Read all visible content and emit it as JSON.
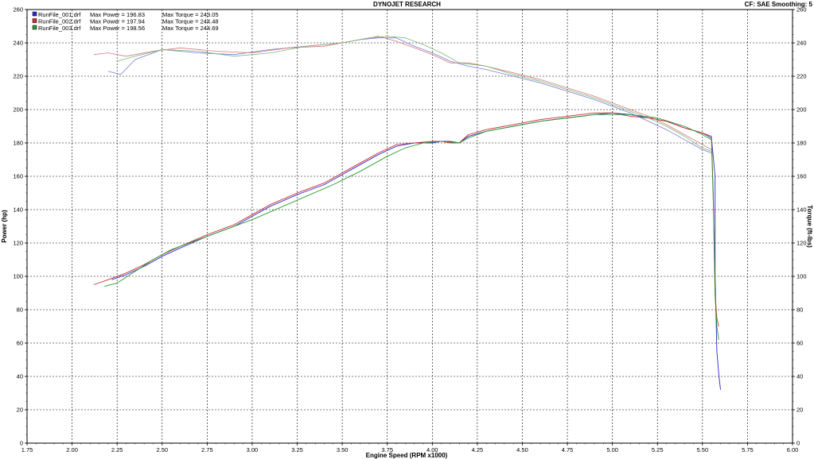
{
  "header": {
    "title": "DYNOJET RESEARCH",
    "cf_info": "CF: SAE  Smoothing: 5"
  },
  "chart_data": {
    "type": "line",
    "title": "DYNOJET RESEARCH",
    "xlabel": "Engine Speed (RPM x1000)",
    "ylabel_left": "Power (hp)",
    "ylabel_right": "Torque (ft-lbs)",
    "xlim": [
      1.75,
      6.0
    ],
    "ylim_left": [
      0,
      260
    ],
    "ylim_right": [
      0,
      260
    ],
    "x_ticks": [
      "1.75",
      "2.00",
      "2.25",
      "2.50",
      "2.75",
      "3.00",
      "3.25",
      "3.50",
      "3.75",
      "4.00",
      "4.25",
      "4.50",
      "4.75",
      "5.00",
      "5.25",
      "5.50",
      "5.75",
      "6.00"
    ],
    "y_ticks_left": [
      "0",
      "20",
      "40",
      "60",
      "80",
      "100",
      "120",
      "140",
      "160",
      "180",
      "200",
      "220",
      "240",
      "260"
    ],
    "y_ticks_right": [
      "0",
      "20",
      "40",
      "60",
      "80",
      "100",
      "120",
      "140",
      "160",
      "180",
      "200",
      "220",
      "240",
      "260"
    ],
    "grid": true,
    "legend_position": "top-left",
    "legend": [
      {
        "file": "RunFile_001.drf",
        "max_power": "Max Power = 196.83",
        "max_torque": "Max Torque = 243.05",
        "color": "#2b2bd0"
      },
      {
        "file": "RunFile_002.drf",
        "max_power": "Max Power = 197.94",
        "max_torque": "Max Torque = 244.48",
        "color": "#d02b2b"
      },
      {
        "file": "RunFile_003.drf",
        "max_power": "Max Power = 198.56",
        "max_torque": "Max Torque = 244.69",
        "color": "#2b9b2b"
      }
    ],
    "series": [
      {
        "name": "RunFile_001.drf",
        "kind": "power",
        "color": "#2b2bd0",
        "x": [
          2.22,
          2.3,
          2.4,
          2.5,
          2.6,
          2.75,
          2.9,
          3.0,
          3.1,
          3.25,
          3.4,
          3.5,
          3.6,
          3.7,
          3.8,
          3.9,
          4.0,
          4.05,
          4.1,
          4.15,
          4.2,
          4.3,
          4.4,
          4.5,
          4.6,
          4.75,
          4.9,
          5.0,
          5.1,
          5.2,
          5.3,
          5.4,
          5.5,
          5.55,
          5.57,
          5.57,
          5.58,
          5.59,
          5.6
        ],
        "y": [
          98,
          101,
          106,
          112,
          117,
          124,
          130,
          136,
          142,
          149,
          155,
          161,
          167,
          173,
          178,
          180,
          180,
          181,
          181,
          180,
          184,
          187,
          189,
          191,
          193,
          195,
          197,
          198,
          197,
          195,
          193,
          189,
          186,
          183,
          160,
          100,
          55,
          42,
          32
        ]
      },
      {
        "name": "RunFile_002.drf",
        "kind": "power",
        "color": "#d02b2b",
        "x": [
          2.12,
          2.2,
          2.3,
          2.4,
          2.5,
          2.6,
          2.75,
          2.9,
          3.0,
          3.1,
          3.25,
          3.4,
          3.5,
          3.6,
          3.7,
          3.8,
          3.9,
          4.0,
          4.05,
          4.1,
          4.15,
          4.2,
          4.3,
          4.4,
          4.5,
          4.6,
          4.75,
          4.9,
          5.0,
          5.1,
          5.2,
          5.3,
          5.4,
          5.5,
          5.55,
          5.56,
          5.57,
          5.58,
          5.59
        ],
        "y": [
          95,
          98,
          102,
          107,
          113,
          118,
          125,
          131,
          137,
          143,
          150,
          156,
          162,
          168,
          174,
          179,
          180,
          181,
          181,
          180,
          180,
          185,
          188,
          190,
          192,
          194,
          196,
          198,
          198,
          196,
          195,
          193,
          189,
          186,
          184,
          150,
          90,
          75,
          70
        ]
      },
      {
        "name": "RunFile_003.drf",
        "kind": "power",
        "color": "#2b9b2b",
        "x": [
          2.18,
          2.25,
          2.35,
          2.45,
          2.55,
          2.7,
          2.85,
          3.0,
          3.15,
          3.3,
          3.45,
          3.6,
          3.75,
          3.85,
          3.95,
          4.05,
          4.15,
          4.2,
          4.3,
          4.45,
          4.6,
          4.75,
          4.9,
          5.0,
          5.1,
          5.25,
          5.4,
          5.5,
          5.55,
          5.56,
          5.57,
          5.58,
          5.59
        ],
        "y": [
          94,
          96,
          103,
          110,
          116,
          122,
          128,
          134,
          141,
          148,
          155,
          163,
          172,
          177,
          180,
          181,
          180,
          183,
          187,
          190,
          193,
          195,
          197,
          197,
          197,
          195,
          190,
          185,
          182,
          145,
          88,
          70,
          62
        ]
      },
      {
        "name": "RunFile_001.drf",
        "kind": "torque",
        "color": "#7878d8",
        "x": [
          2.2,
          2.27,
          2.35,
          2.5,
          2.7,
          2.9,
          3.1,
          3.3,
          3.5,
          3.6,
          3.7,
          3.8,
          3.9,
          4.0,
          4.1,
          4.2,
          4.3,
          4.45,
          4.6,
          4.75,
          4.9,
          5.0,
          5.1,
          5.2,
          5.3,
          5.4,
          5.5,
          5.55
        ],
        "y": [
          223,
          221,
          230,
          236,
          234,
          233,
          236,
          238,
          240,
          242,
          243,
          243,
          238,
          234,
          229,
          226,
          224,
          220,
          216,
          211,
          206,
          202,
          198,
          193,
          188,
          182,
          176,
          174
        ]
      },
      {
        "name": "RunFile_002.drf",
        "kind": "torque",
        "color": "#d87878",
        "x": [
          2.12,
          2.2,
          2.3,
          2.45,
          2.6,
          2.8,
          3.0,
          3.2,
          3.4,
          3.5,
          3.6,
          3.7,
          3.8,
          3.9,
          4.0,
          4.1,
          4.2,
          4.3,
          4.45,
          4.6,
          4.75,
          4.9,
          5.0,
          5.1,
          5.2,
          5.3,
          5.4,
          5.5,
          5.55
        ],
        "y": [
          233,
          234,
          232,
          235,
          237,
          235,
          234,
          237,
          238,
          240,
          242,
          244,
          241,
          237,
          233,
          228,
          228,
          226,
          222,
          218,
          213,
          208,
          204,
          200,
          196,
          191,
          185,
          179,
          176
        ]
      },
      {
        "name": "RunFile_003.drf",
        "kind": "torque",
        "color": "#78b878",
        "x": [
          2.25,
          2.35,
          2.5,
          2.7,
          2.9,
          3.1,
          3.3,
          3.5,
          3.65,
          3.75,
          3.85,
          3.95,
          4.05,
          4.15,
          4.3,
          4.45,
          4.6,
          4.75,
          4.9,
          5.0,
          5.1,
          5.2,
          5.3,
          5.4,
          5.5,
          5.55
        ],
        "y": [
          229,
          232,
          236,
          235,
          232,
          234,
          238,
          240,
          243,
          244,
          243,
          239,
          234,
          228,
          226,
          221,
          217,
          212,
          207,
          203,
          199,
          195,
          190,
          184,
          177,
          175
        ]
      }
    ]
  }
}
